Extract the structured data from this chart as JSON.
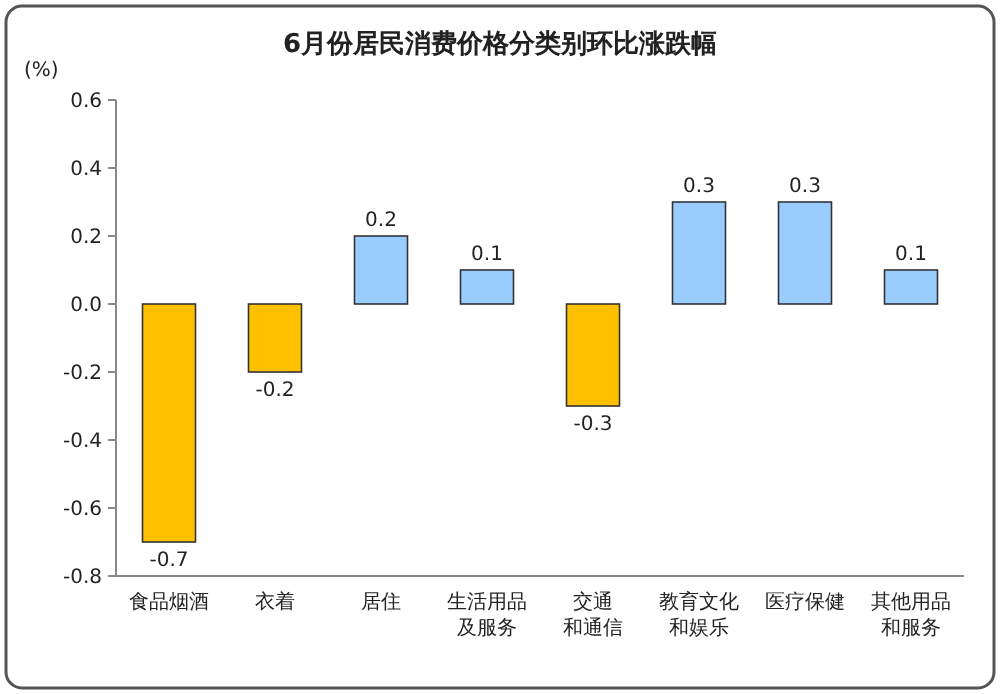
{
  "chart_data": {
    "type": "bar",
    "title": "6月份居民消费价格分类别环比涨跌幅",
    "ylabel": "(%)",
    "categories": [
      "食品烟酒",
      "衣着",
      "居住",
      "生活用品及服务",
      "交通和通信",
      "教育文化和娱乐",
      "医疗保健",
      "其他用品和服务"
    ],
    "values": [
      -0.7,
      -0.2,
      0.2,
      0.1,
      -0.3,
      0.3,
      0.3,
      0.1
    ],
    "colors": [
      "#ffc000",
      "#ffc000",
      "#99ccff",
      "#99ccff",
      "#ffc000",
      "#99ccff",
      "#99ccff",
      "#99ccff"
    ],
    "ylim": [
      -0.8,
      0.6
    ],
    "yticks": [
      -0.8,
      -0.6,
      -0.4,
      -0.2,
      {
        "value": 0,
        "label": "0.0"
      },
      0.2,
      0.4,
      0.6
    ],
    "data_labels": true,
    "grid": false
  }
}
